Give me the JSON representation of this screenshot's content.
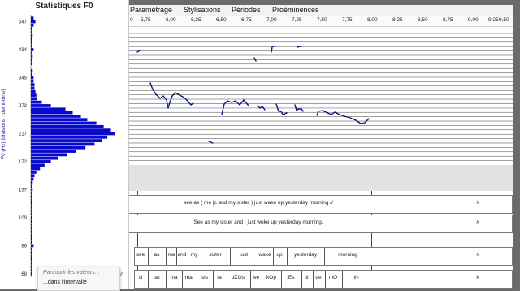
{
  "stats": {
    "title": "Statistiques F0",
    "axis_label": "F0 (Hz)  [divisions : demi-tons]",
    "context_menu": {
      "item1": "Parcourir les valeurs...",
      "item2": "...dans l'intervalle"
    },
    "bottom_tick": "00"
  },
  "menu": [
    "Paramétrage",
    "Stylisations",
    "Périodes",
    "Proéminences"
  ],
  "ruler": {
    "first_label": "0",
    "labels": [
      "5,75",
      "6,00",
      "6,25",
      "6,50",
      "6,75",
      "7,00",
      "7,25",
      "7,50",
      "7,75",
      "8,00",
      "8,25",
      "8,50",
      "8,75",
      "9,00",
      "9,25",
      "9,50"
    ]
  },
  "tiers": {
    "sentence1": "see as ( me |c and my sister ) just wake up yesterday morning //",
    "sentence2": "See as my sister and I just woke up yesterday morning,",
    "words": [
      "see",
      "as",
      "me",
      "and",
      "my",
      "sister",
      "just",
      "wake",
      "up",
      "yesterday",
      "morning"
    ],
    "phones": [
      "si",
      "jaz",
      "ma",
      "mal",
      "sis",
      "ta",
      "dZOs",
      "we",
      "kOp",
      "jEs",
      "ti",
      "de",
      "mO",
      "ni~"
    ],
    "end_marks": [
      "#",
      "#",
      "#",
      "#"
    ]
  },
  "colors": {
    "histogram": "#0a0acc",
    "curve": "#14147a",
    "window_bg": "#6b6b6b"
  },
  "chart_data": {
    "type": "bar",
    "orientation": "horizontal",
    "title": "Statistiques F0",
    "ylabel": "F0 (Hz)  [divisions : demi-tons]",
    "y_tick_labels": [
      "547",
      "434",
      "345",
      "273",
      "217",
      "172",
      "137",
      "109",
      "86",
      "68"
    ],
    "bins_hz": [
      563,
      547,
      531,
      516,
      501,
      487,
      473,
      460,
      447,
      434,
      422,
      410,
      398,
      387,
      376,
      365,
      355,
      345,
      335,
      325,
      316,
      307,
      298,
      290,
      281,
      273,
      265,
      258,
      250,
      243,
      236,
      230,
      223,
      217,
      211,
      205,
      199,
      193,
      188,
      182,
      177,
      172,
      167,
      163,
      158,
      154,
      149,
      145,
      141,
      137,
      133,
      129,
      125,
      122,
      118,
      115,
      112,
      109,
      106,
      103,
      100,
      97,
      94,
      91,
      89,
      86,
      84,
      81,
      79,
      77,
      75,
      72,
      70,
      68
    ],
    "counts": [
      3,
      5,
      3,
      1,
      1,
      2,
      1,
      1,
      1,
      3,
      1,
      2,
      1,
      1,
      0,
      2,
      1,
      3,
      3,
      4,
      4,
      5,
      6,
      7,
      12,
      22,
      38,
      46,
      55,
      62,
      72,
      80,
      88,
      92,
      84,
      78,
      70,
      60,
      50,
      40,
      30,
      22,
      15,
      10,
      6,
      4,
      3,
      2,
      1,
      2,
      1,
      1,
      1,
      1,
      1,
      1,
      1,
      1,
      1,
      1,
      1,
      1,
      1,
      1,
      1,
      3,
      1,
      1,
      1,
      1,
      1,
      1,
      1,
      1
    ],
    "xlim": [
      0,
      100
    ]
  }
}
